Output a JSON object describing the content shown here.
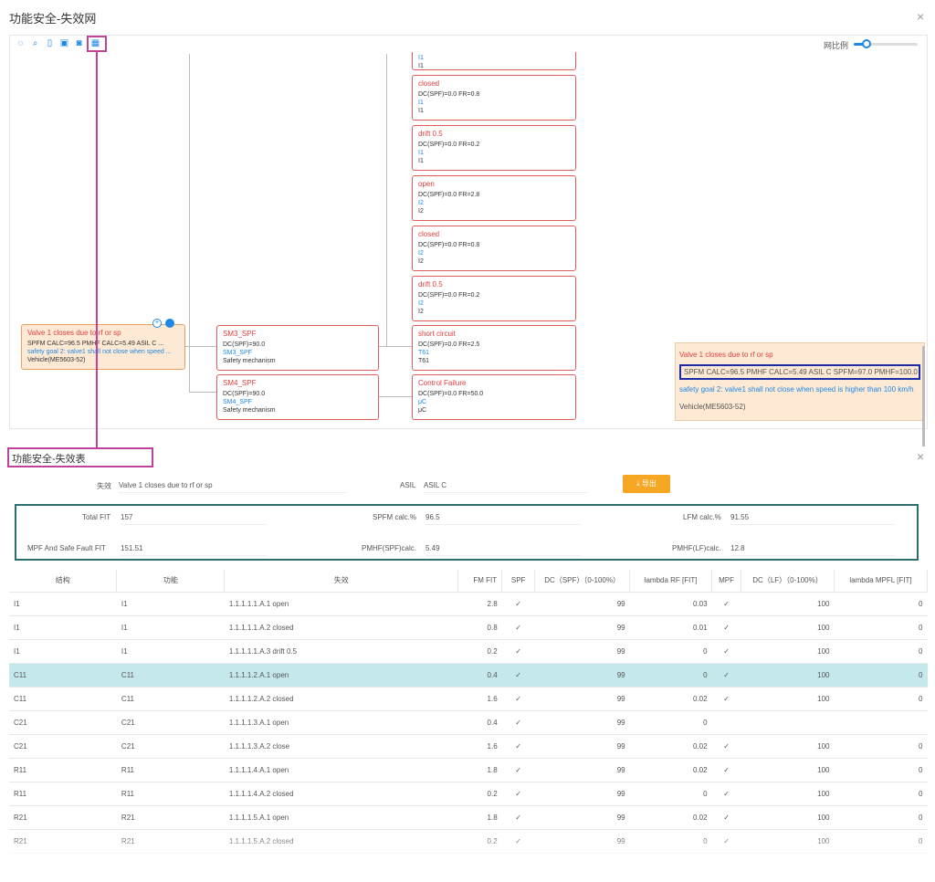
{
  "top_title": "功能安全-失效网",
  "close_symbol": "×",
  "zoom_label": "网比例",
  "zoom_level": 0.2,
  "nodes": {
    "partial_top": {
      "l1": "I1",
      "l2": "I1"
    },
    "n1": {
      "title": "closed",
      "dc": "DC(SPF)=0.0 FR=0.8",
      "l1": "I1",
      "l2": "I1"
    },
    "n2": {
      "title": "drift 0.5",
      "dc": "DC(SPF)=0.0 FR=0.2",
      "l1": "I1",
      "l2": "I1"
    },
    "n3": {
      "title": "open",
      "dc": "DC(SPF)=0.0 FR=2.8",
      "l1": "I2",
      "l2": "I2"
    },
    "n4": {
      "title": "closed",
      "dc": "DC(SPF)=0.0 FR=0.8",
      "l1": "I2",
      "l2": "I2"
    },
    "n5": {
      "title": "drift 0.5",
      "dc": "DC(SPF)=0.0 FR=0.2",
      "l1": "I2",
      "l2": "I2"
    },
    "n6": {
      "title": "short circuit",
      "dc": "DC(SPF)=0.0 FR=2.5",
      "l1": "T61",
      "l2": "T61"
    },
    "n7": {
      "title": "Control Failure",
      "dc": "DC(SPF)=0.0 FR=50.0",
      "l1": "μC",
      "l2": "μC"
    },
    "sm3": {
      "title": "SM3_SPF",
      "dc": "DC(SPF)=90.0",
      "l1": "SM3_SPF",
      "l2": "Safety mechanism"
    },
    "sm4": {
      "title": "SM4_SPF",
      "dc": "DC(SPF)=90.0",
      "l1": "SM4_SPF",
      "l2": "Safety mechanism"
    },
    "root": {
      "title": "Valve 1 closes due to rf or sp",
      "dc": "SPFM CALC=96.5 PMHF CALC=5.49 ASIL C ...",
      "l1": "safety goal 2: valve1 shall not close when speed ...",
      "l2": "Vehicle(ME5603-52)"
    }
  },
  "tooltip": {
    "title": "Valve 1 closes due to rf or sp",
    "metrics": "SPFM CALC=96.5 PMHF CALC=5.49 ASIL C SPFM=97.0 PMHF=100.0",
    "goal": "safety goal 2: valve1 shall not close when speed is higher than 100 km/h",
    "vehicle": "Vehicle(ME5603-52)"
  },
  "bottom_title": "功能安全-失效表",
  "summary": {
    "failure_label": "失效",
    "failure_value": "Valve 1 closes due to rf or sp",
    "asil_label": "ASIL",
    "asil_value": "ASIL C",
    "export_label": "导出",
    "total_fit_label": "Total FIT",
    "total_fit_value": "157",
    "spfm_label": "SPFM calc.%",
    "spfm_value": "96.5",
    "lfm_label": "LFM calc.%",
    "lfm_value": "91.55",
    "mpf_label": "MPF And Safe Fault FIT",
    "mpf_value": "151.51",
    "pmhf_spf_label": "PMHF(SPF)calc.",
    "pmhf_spf_value": "5.49",
    "pmhf_lf_label": "PMHF(LF)calc.",
    "pmhf_lf_value": "12.8"
  },
  "table": {
    "headers": [
      "结构",
      "功能",
      "失效",
      "FM FIT",
      "SPF",
      "DC（SPF）（0-100%）",
      "lambda RF [FIT]",
      "MPF",
      "DC（LF）（0-100%）",
      "lambda MPFL [FIT]"
    ],
    "check": "✓",
    "rows": [
      [
        "I1",
        "I1",
        "1.1.1.1.1.A.1 open",
        "2.8",
        "✓",
        "99",
        "0.03",
        "✓",
        "100",
        "0"
      ],
      [
        "I1",
        "I1",
        "1.1.1.1.1.A.2 closed",
        "0.8",
        "✓",
        "99",
        "0.01",
        "✓",
        "100",
        "0"
      ],
      [
        "I1",
        "I1",
        "1.1.1.1.1.A.3 drift 0.5",
        "0.2",
        "✓",
        "99",
        "0",
        "✓",
        "100",
        "0"
      ],
      [
        "C11",
        "C11",
        "1.1.1.1.2.A.1 open",
        "0.4",
        "✓",
        "99",
        "0",
        "✓",
        "100",
        "0"
      ],
      [
        "C11",
        "C11",
        "1.1.1.1.2.A.2 closed",
        "1.6",
        "✓",
        "99",
        "0.02",
        "✓",
        "100",
        "0"
      ],
      [
        "C21",
        "C21",
        "1.1.1.1.3.A.1 open",
        "0.4",
        "✓",
        "99",
        "0",
        "",
        "",
        ""
      ],
      [
        "C21",
        "C21",
        "1.1.1.1.3.A.2 close",
        "1.6",
        "✓",
        "99",
        "0.02",
        "✓",
        "100",
        "0"
      ],
      [
        "R11",
        "R11",
        "1.1.1.1.4.A.1 open",
        "1.8",
        "✓",
        "99",
        "0.02",
        "✓",
        "100",
        "0"
      ],
      [
        "R11",
        "R11",
        "1.1.1.1.4.A.2 closed",
        "0.2",
        "✓",
        "99",
        "0",
        "✓",
        "100",
        "0"
      ],
      [
        "R21",
        "R21",
        "1.1.1.1.5.A.1 open",
        "1.8",
        "✓",
        "99",
        "0.02",
        "✓",
        "100",
        "0"
      ],
      [
        "R21",
        "R21",
        "1.1.1.1.5.A.2 closed",
        "0.2",
        "✓",
        "99",
        "0",
        "✓",
        "100",
        "0"
      ]
    ]
  }
}
